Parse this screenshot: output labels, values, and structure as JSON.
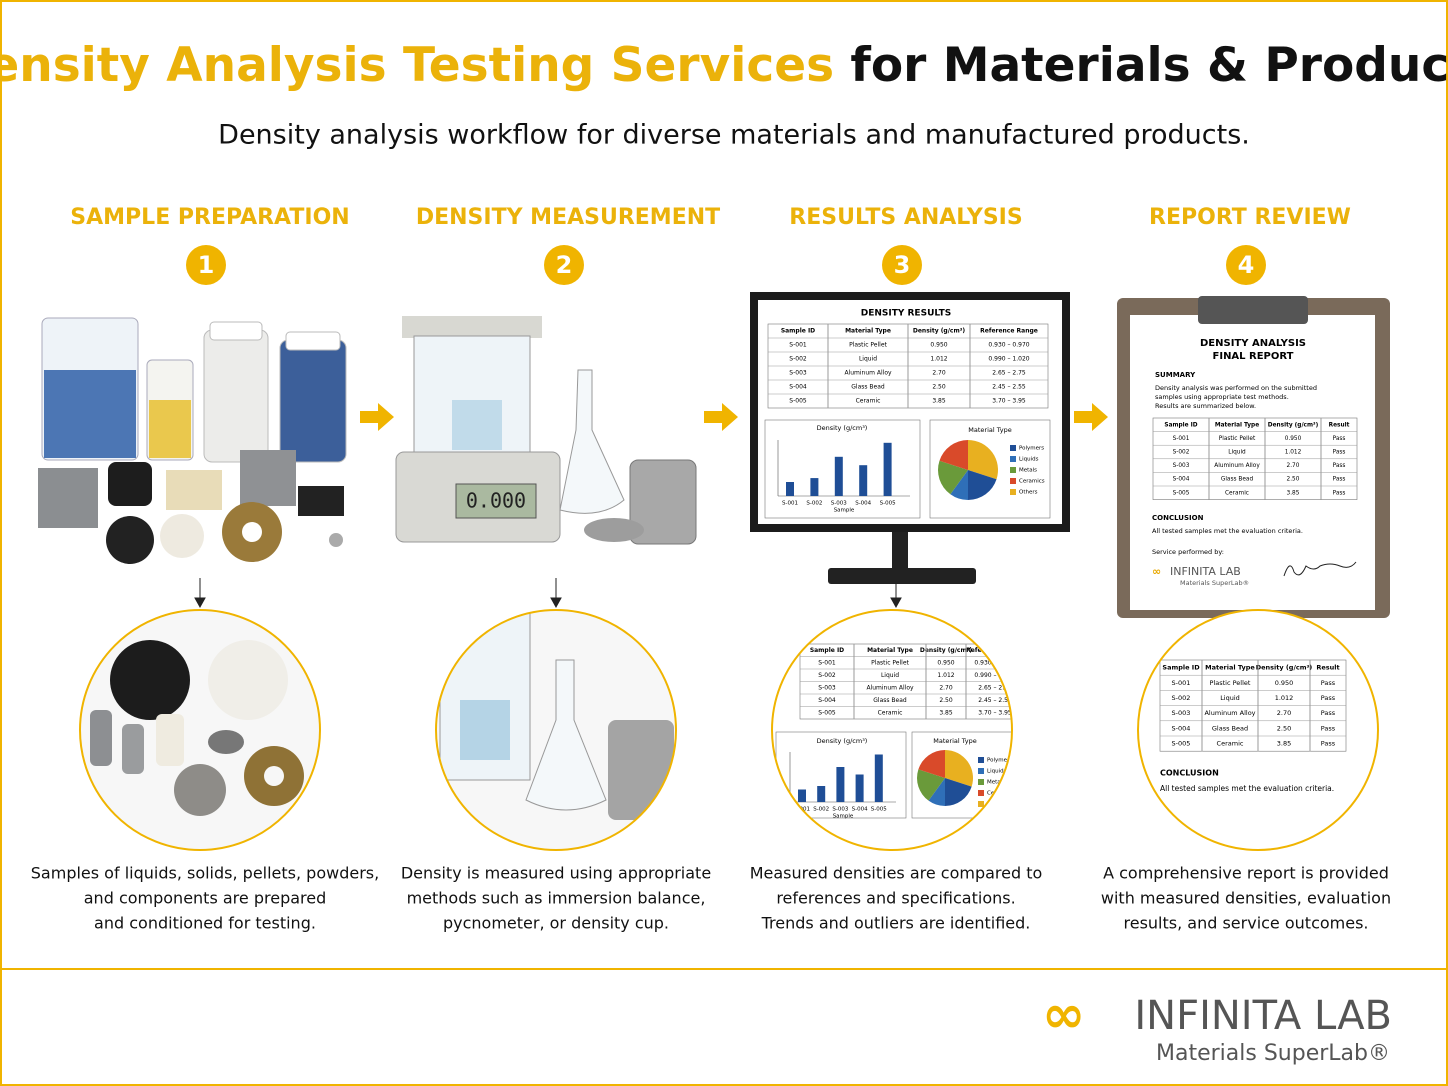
{
  "header": {
    "title_highlight": "Density Analysis Testing Services",
    "title_rest": "for Materials & Products",
    "subtitle": "Density analysis workflow for diverse materials and manufactured products."
  },
  "steps": [
    {
      "title": "SAMPLE PREPARATION",
      "number": "1",
      "description_lines": [
        "Samples of liquids, solids, pellets, powders,",
        "and components are prepared",
        "and conditioned for testing."
      ]
    },
    {
      "title": "DENSITY MEASUREMENT",
      "number": "2",
      "description_lines": [
        "Density is measured using appropriate",
        "methods such as immersion balance,",
        "pycnometer, or density cup."
      ]
    },
    {
      "title": "RESULTS ANALYSIS",
      "number": "3",
      "description_lines": [
        "Measured densities are compared to",
        "references and specifications.",
        "Trends and outliers are identified."
      ]
    },
    {
      "title": "REPORT REVIEW",
      "number": "4",
      "description_lines": [
        "A comprehensive report is provided",
        "with measured densities, evaluation",
        "results, and service outcomes."
      ]
    }
  ],
  "balance_display": "0.000",
  "monitor": {
    "title": "DENSITY RESULTS",
    "columns": [
      "Sample ID",
      "Material Type",
      "Density (g/cm³)",
      "Reference Range"
    ],
    "rows": [
      [
        "S-001",
        "Plastic Pellet",
        "0.950",
        "0.930 – 0.970"
      ],
      [
        "S-002",
        "Liquid",
        "1.012",
        "0.990 – 1.020"
      ],
      [
        "S-003",
        "Aluminum Alloy",
        "2.70",
        "2.65 – 2.75"
      ],
      [
        "S-004",
        "Glass Bead",
        "2.50",
        "2.45 – 2.55"
      ],
      [
        "S-005",
        "Ceramic",
        "3.85",
        "3.70 – 3.95"
      ]
    ],
    "bar_chart_title": "Density (g/cm³)",
    "bar_chart_xlabel": "Sample",
    "pie_title": "Material Type",
    "pie_legend": [
      "Polymers",
      "Liquids",
      "Metals",
      "Ceramics",
      "Others"
    ]
  },
  "report": {
    "title_lines": [
      "DENSITY ANALYSIS",
      "FINAL REPORT"
    ],
    "summary_heading": "SUMMARY",
    "summary_lines": [
      "Density analysis was performed on the submitted",
      "samples using appropriate test methods.",
      "Results are summarized below."
    ],
    "columns": [
      "Sample ID",
      "Material Type",
      "Density (g/cm³)",
      "Result"
    ],
    "rows": [
      [
        "S-001",
        "Plastic Pellet",
        "0.950",
        "Pass"
      ],
      [
        "S-002",
        "Liquid",
        "1.012",
        "Pass"
      ],
      [
        "S-003",
        "Aluminum Alloy",
        "2.70",
        "Pass"
      ],
      [
        "S-004",
        "Glass Bead",
        "2.50",
        "Pass"
      ],
      [
        "S-005",
        "Ceramic",
        "3.85",
        "Pass"
      ]
    ],
    "conclusion_heading": "CONCLUSION",
    "conclusion": "All tested samples met the evaluation criteria.",
    "service_label": "Service performed by:",
    "logo_name": "INFINITA LAB",
    "logo_tagline": "Materials SuperLab®"
  },
  "footer": {
    "logo_name": "INFINITA LAB",
    "logo_tagline": "Materials SuperLab®"
  }
}
